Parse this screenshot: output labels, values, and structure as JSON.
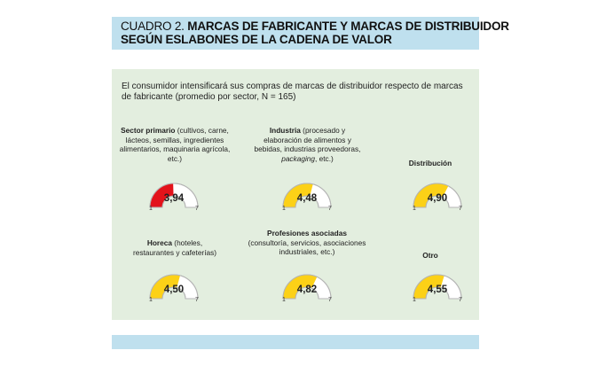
{
  "title": {
    "prefix": "CUADRO 2.",
    "line1": "MARCAS DE FABRICANTE Y MARCAS DE DISTRIBUIDOR",
    "line2": "SEGÚN ESLABONES DE LA CADENA DE VALOR"
  },
  "intro": "El consumidor intensificará sus compras de marcas de distribuidor respecto de marcas de fabricante (promedio por sector, N = 165)",
  "colors": {
    "red": "#e3131b",
    "yellow": "#fcd117",
    "empty": "#ffffff",
    "outline": "#b4b4b4",
    "panel": "#e3eedf",
    "bar": "#bfe0ee"
  },
  "chart_data": {
    "type": "gauge",
    "scale": [
      1,
      7
    ],
    "items": [
      {
        "name": "Sector primario",
        "detail": " (cultivos, carne, lácteos, semillas, ingredientes alimentarios, maquinaria agrícola, etc.)",
        "value": 3.94,
        "value_label": "3,94",
        "color": "red"
      },
      {
        "name": "Industria",
        "detail": " (procesado y elaboración de alimentos y bebidas, industrias proveedoras, ",
        "detail_italic": "packaging",
        "detail_end": ", etc.)",
        "value": 4.48,
        "value_label": "4,48",
        "color": "yellow"
      },
      {
        "name": "Distribución",
        "value": 4.9,
        "value_label": "4,90",
        "color": "yellow"
      },
      {
        "name": "Horeca",
        "detail": " (hoteles, restaurantes y cafeterías)",
        "value": 4.5,
        "value_label": "4,50",
        "color": "yellow"
      },
      {
        "name": "Profesiones asociadas",
        "detail": "(consultoría, servicios, asociaciones industriales, etc.)",
        "value": 4.82,
        "value_label": "4,82",
        "color": "yellow"
      },
      {
        "name": "Otro",
        "value": 4.55,
        "value_label": "4,55",
        "color": "yellow"
      }
    ],
    "min_label": "1",
    "max_label": "7"
  }
}
